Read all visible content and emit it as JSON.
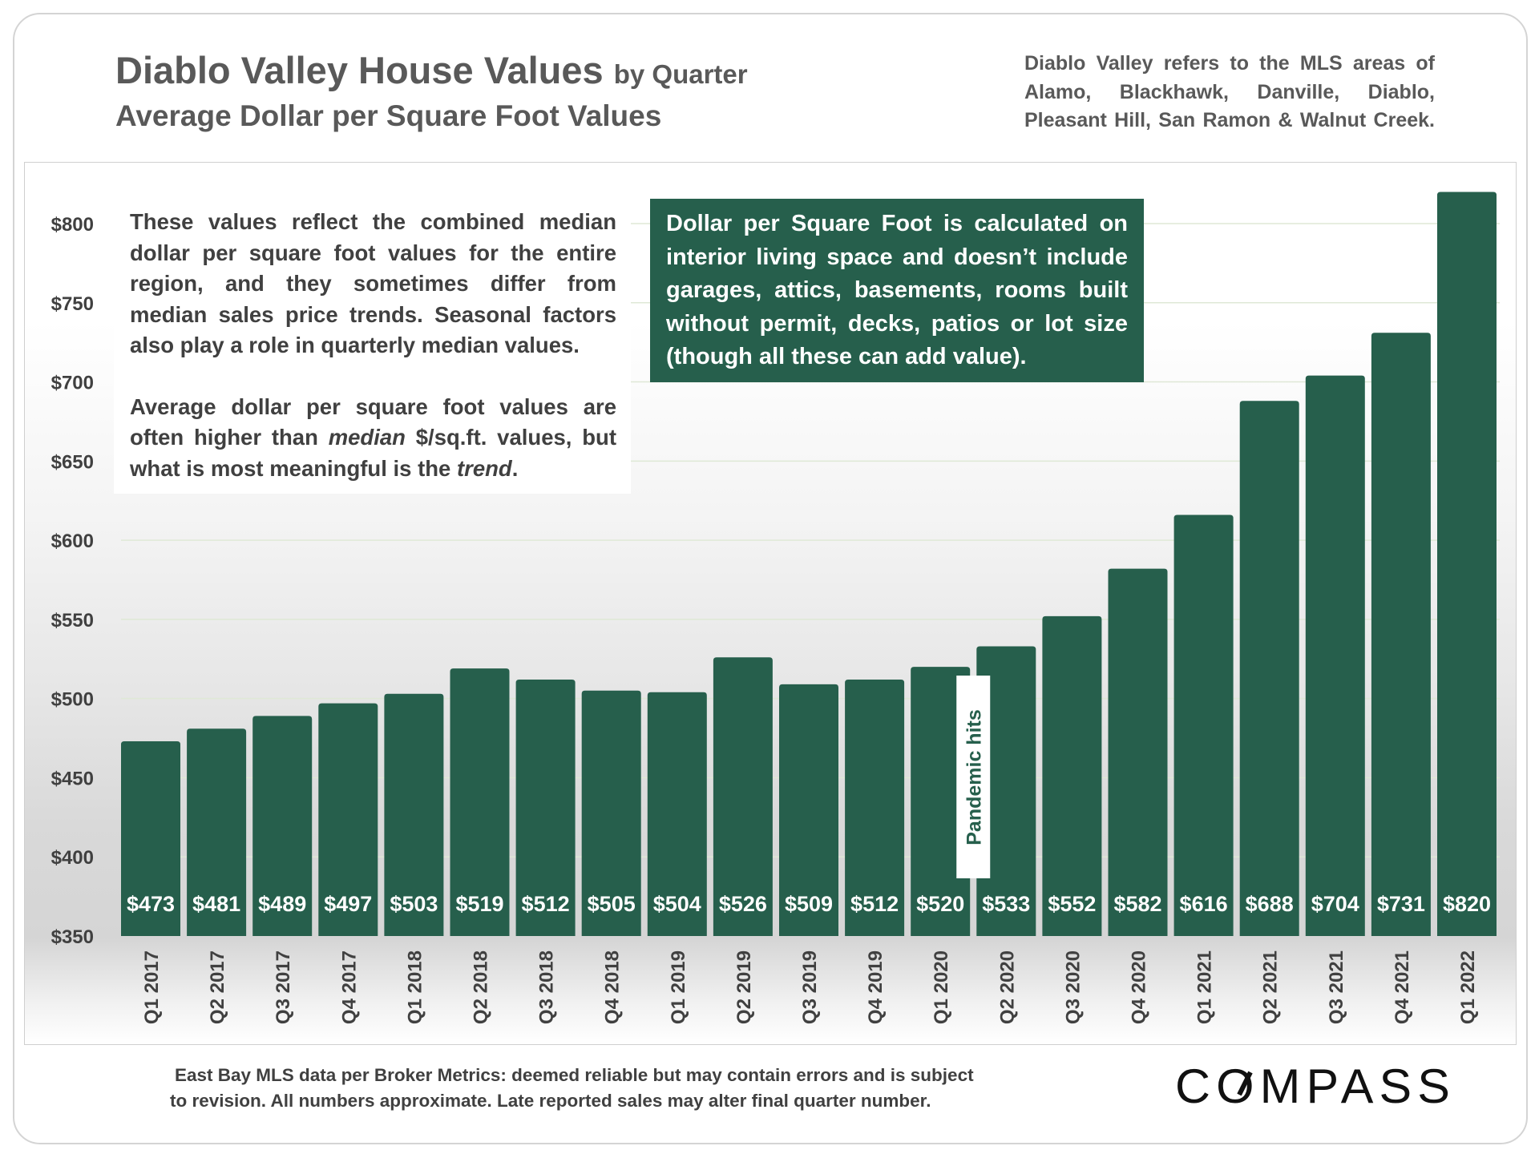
{
  "header": {
    "title": "Diablo Valley House Values",
    "title_suffix": "by Quarter",
    "subtitle": "Average Dollar per Square Foot Values",
    "region_note_lines": [
      "Diablo Valley refers to the MLS areas of",
      "Alamo, Blackhawk, Danville, Diablo,",
      "Pleasant Hill, San Ramon & Walnut Creek."
    ]
  },
  "notes": {
    "left_p1": "These values reflect the combined median dollar per square foot values for the entire region, and they sometimes differ from median sales price trends. Seasonal factors also play a role in quarterly median values.",
    "left_p2_a": "Average dollar per square foot values are often higher than ",
    "left_p2_em1": "median",
    "left_p2_b": " $/sq.ft. values, but what is most meaningful is the ",
    "left_p2_em2": "trend",
    "left_p2_c": ".",
    "right_lines": [
      "Dollar per Square Foot is calculated on",
      "interior living space and doesn’t include",
      "garages, attics, basements, rooms built",
      "without permit, decks, patios or lot size",
      "(though all these can add value)."
    ]
  },
  "footer": {
    "line1": "East Bay MLS data per Broker Metrics:  deemed reliable but may contain errors and is subject",
    "line2": "to revision. All numbers approximate. Late reported sales may alter final quarter number.",
    "brand": "COMPASS"
  },
  "colors": {
    "bar": "#265f4c",
    "gridline": "#dfe8d6",
    "axis_text": "#404040",
    "label_text": "#ffffff"
  },
  "chart_data": {
    "type": "bar",
    "title": "Diablo Valley House Values by Quarter",
    "subtitle": "Average Dollar per Square Foot Values",
    "xlabel": "",
    "ylabel": "",
    "ylim": [
      350,
      820
    ],
    "yticks": [
      350,
      400,
      450,
      500,
      550,
      600,
      650,
      700,
      750,
      800
    ],
    "ytick_labels": [
      "$350",
      "$400",
      "$450",
      "$500",
      "$550",
      "$600",
      "$650",
      "$700",
      "$750",
      "$800"
    ],
    "categories": [
      "Q1 2017",
      "Q2 2017",
      "Q3 2017",
      "Q4 2017",
      "Q1 2018",
      "Q2 2018",
      "Q3 2018",
      "Q4 2018",
      "Q1 2019",
      "Q2 2019",
      "Q3 2019",
      "Q4 2019",
      "Q1 2020",
      "Q2 2020",
      "Q3 2020",
      "Q4 2020",
      "Q1 2021",
      "Q2 2021",
      "Q3 2021",
      "Q4 2021",
      "Q1 2022"
    ],
    "values": [
      473,
      481,
      489,
      497,
      503,
      519,
      512,
      505,
      504,
      526,
      509,
      512,
      520,
      533,
      552,
      582,
      616,
      688,
      704,
      731,
      820
    ],
    "data_labels": [
      "$473",
      "$481",
      "$489",
      "$497",
      "$503",
      "$519",
      "$512",
      "$505",
      "$504",
      "$526",
      "$509",
      "$512",
      "$520",
      "$533",
      "$552",
      "$582",
      "$616",
      "$688",
      "$704",
      "$731",
      "$820"
    ],
    "annotation": {
      "text": "Pandemic hits",
      "between": [
        "Q1 2020",
        "Q2 2020"
      ]
    },
    "gridlines": true
  }
}
